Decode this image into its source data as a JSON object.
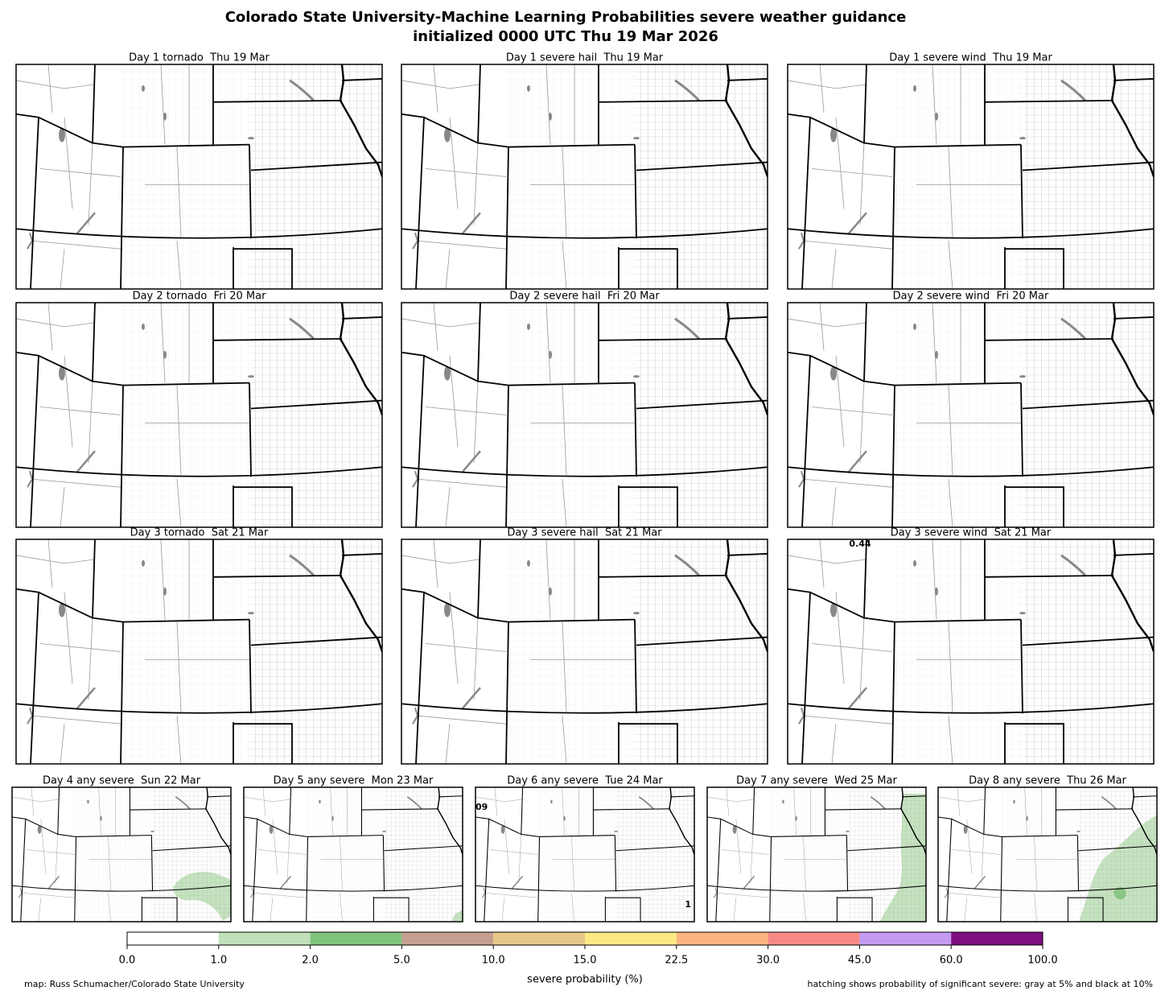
{
  "header": {
    "title": "Colorado State University-Machine Learning Probabilities severe weather guidance",
    "subtitle": "initialized 0000 UTC Thu 19 Mar 2026"
  },
  "panels": [
    {
      "title": "Day 1 tornado  Thu 19 Mar"
    },
    {
      "title": "Day 1 severe hail  Thu 19 Mar"
    },
    {
      "title": "Day 1 severe wind  Thu 19 Mar"
    },
    {
      "title": "Day 2 tornado  Fri 20 Mar"
    },
    {
      "title": "Day 2 severe hail  Fri 20 Mar"
    },
    {
      "title": "Day 2 severe wind  Fri 20 Mar"
    },
    {
      "title": "Day 3 tornado  Sat 21 Mar"
    },
    {
      "title": "Day 3 severe hail  Sat 21 Mar"
    },
    {
      "title": "Day 3 severe wind  Sat 21 Mar",
      "annotations": [
        "0.44"
      ]
    },
    {
      "title": "Day 4 any severe  Sun 22 Mar"
    },
    {
      "title": "Day 5 any severe  Mon 23 Mar"
    },
    {
      "title": "Day 6 any severe  Tue 24 Mar",
      "annotations": [
        "09",
        "1"
      ]
    },
    {
      "title": "Day 7 any severe  Wed 25 Mar"
    },
    {
      "title": "Day 8 any severe  Thu 26 Mar"
    }
  ],
  "colorbar": {
    "label": "severe probability (%)",
    "ticks": [
      {
        "value": 0,
        "label": "0.0"
      },
      {
        "value": 1,
        "label": "1.0"
      },
      {
        "value": 2,
        "label": "2.0"
      },
      {
        "value": 5,
        "label": "5.0"
      },
      {
        "value": 10,
        "label": "10.0"
      },
      {
        "value": 15,
        "label": "15.0"
      },
      {
        "value": 22.5,
        "label": "22.5"
      },
      {
        "value": 30,
        "label": "30.0"
      },
      {
        "value": 45,
        "label": "45.0"
      },
      {
        "value": 60,
        "label": "60.0"
      },
      {
        "value": 100,
        "label": "100.0"
      }
    ],
    "colors": [
      "#ffffff",
      "#bfe0b8",
      "#80c47d",
      "#c4a090",
      "#e6c98a",
      "#fde984",
      "#fbb480",
      "#f88a86",
      "#c59af1",
      "#7e0f80"
    ]
  },
  "footer": {
    "left": "map: Russ Schumacher/Colorado State University",
    "right": "hatching shows probability of significant severe: gray at 5% and black at 10%"
  }
}
